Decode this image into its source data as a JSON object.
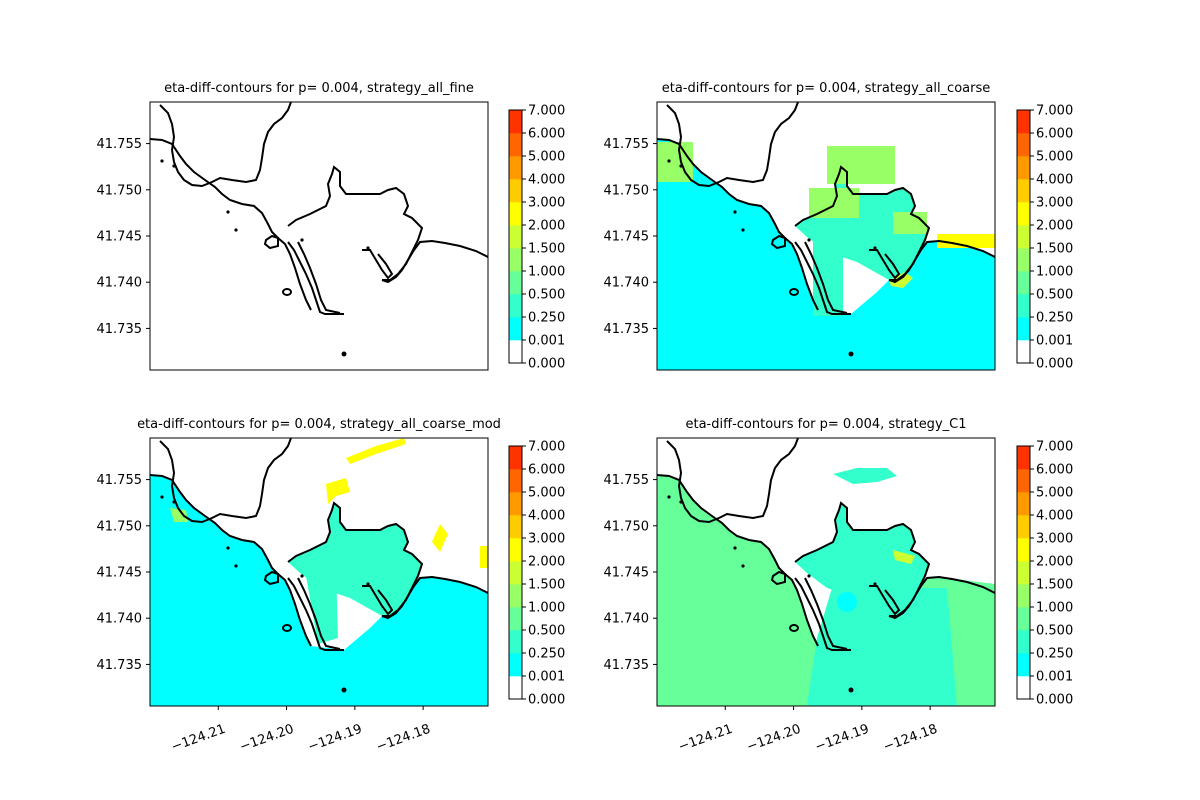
{
  "chart_data": [
    {
      "type": "heatmap",
      "title": "eta-diff-contours for p= 0.004, strategy_all_fine",
      "xlabel": "",
      "ylabel": "",
      "x_ticks": [],
      "y_ticks": [
        "41.735",
        "41.740",
        "41.745",
        "41.750",
        "41.755"
      ],
      "xlim": [
        -124.22,
        -124.1705
      ],
      "ylim": [
        41.7305,
        41.7595
      ],
      "fill": "none",
      "colorbar": {
        "levels": [
          "0.000",
          "0.001",
          "0.250",
          "0.500",
          "1.000",
          "1.500",
          "2.000",
          "3.000",
          "4.000",
          "5.000",
          "6.000",
          "7.000"
        ]
      }
    },
    {
      "type": "heatmap",
      "title": "eta-diff-contours for p= 0.004, strategy_all_coarse",
      "xlabel": "",
      "ylabel": "",
      "x_ticks": [],
      "y_ticks": [
        "41.735",
        "41.740",
        "41.745",
        "41.750",
        "41.755"
      ],
      "xlim": [
        -124.22,
        -124.1705
      ],
      "ylim": [
        41.7305,
        41.7595
      ],
      "fill": "coarse",
      "colorbar": {
        "levels": [
          "0.000",
          "0.001",
          "0.250",
          "0.500",
          "1.000",
          "1.500",
          "2.000",
          "3.000",
          "4.000",
          "5.000",
          "6.000",
          "7.000"
        ]
      }
    },
    {
      "type": "heatmap",
      "title": "eta-diff-contours for p= 0.004, strategy_all_coarse_mod",
      "xlabel": "",
      "ylabel": "",
      "x_ticks": [
        "−124.21",
        "−124.20",
        "−124.19",
        "−124.18"
      ],
      "y_ticks": [
        "41.735",
        "41.740",
        "41.745",
        "41.750",
        "41.755"
      ],
      "xlim": [
        -124.22,
        -124.1705
      ],
      "ylim": [
        41.7305,
        41.7595
      ],
      "fill": "coarse_mod",
      "colorbar": {
        "levels": [
          "0.000",
          "0.001",
          "0.250",
          "0.500",
          "1.000",
          "1.500",
          "2.000",
          "3.000",
          "4.000",
          "5.000",
          "6.000",
          "7.000"
        ]
      }
    },
    {
      "type": "heatmap",
      "title": "eta-diff-contours for p= 0.004, strategy_C1",
      "xlabel": "",
      "ylabel": "",
      "x_ticks": [
        "−124.21",
        "−124.20",
        "−124.19",
        "−124.18"
      ],
      "y_ticks": [
        "41.735",
        "41.740",
        "41.745",
        "41.750",
        "41.755"
      ],
      "xlim": [
        -124.22,
        -124.1705
      ],
      "ylim": [
        41.7305,
        41.7595
      ],
      "fill": "c1",
      "colorbar": {
        "levels": [
          "0.000",
          "0.001",
          "0.250",
          "0.500",
          "1.000",
          "1.500",
          "2.000",
          "3.000",
          "4.000",
          "5.000",
          "6.000",
          "7.000"
        ]
      }
    }
  ],
  "colors": {
    "levels": [
      "#ffffff",
      "#00ffff",
      "#33ffcc",
      "#66ff99",
      "#99ff66",
      "#ccff33",
      "#ffff00",
      "#ffcc00",
      "#ff9900",
      "#ff6600",
      "#ff3300",
      "#ff0000"
    ],
    "coastline": "#000000"
  }
}
